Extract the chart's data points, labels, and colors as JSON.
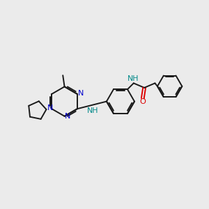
{
  "background_color": "#ebebeb",
  "bond_color": "#1a1a1a",
  "N_color": "#0000cc",
  "O_color": "#dd0000",
  "NH_color": "#008888",
  "lw": 1.4,
  "figsize": [
    3.0,
    3.0
  ],
  "dpi": 100,
  "xlim": [
    0,
    10
  ],
  "ylim": [
    0,
    10
  ]
}
